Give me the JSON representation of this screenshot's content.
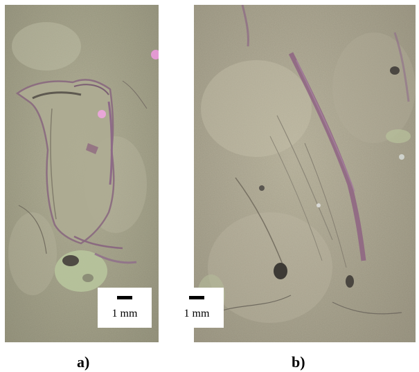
{
  "panels": [
    {
      "id": "a",
      "caption": "a)",
      "scale_label": "1 mm",
      "colors": {
        "base": "#a6a58d",
        "light": "#c7c7ad",
        "purple": "#8f6c8b",
        "dark": "#5f5a4f",
        "green": "#b5c39a"
      }
    },
    {
      "id": "b",
      "caption": "b)",
      "scale_label": "1 mm",
      "colors": {
        "base": "#b0ab96",
        "light": "#c9c6b1",
        "purple": "#8e6383",
        "dark": "#4f4a44",
        "green": "#b6c09a"
      }
    }
  ]
}
